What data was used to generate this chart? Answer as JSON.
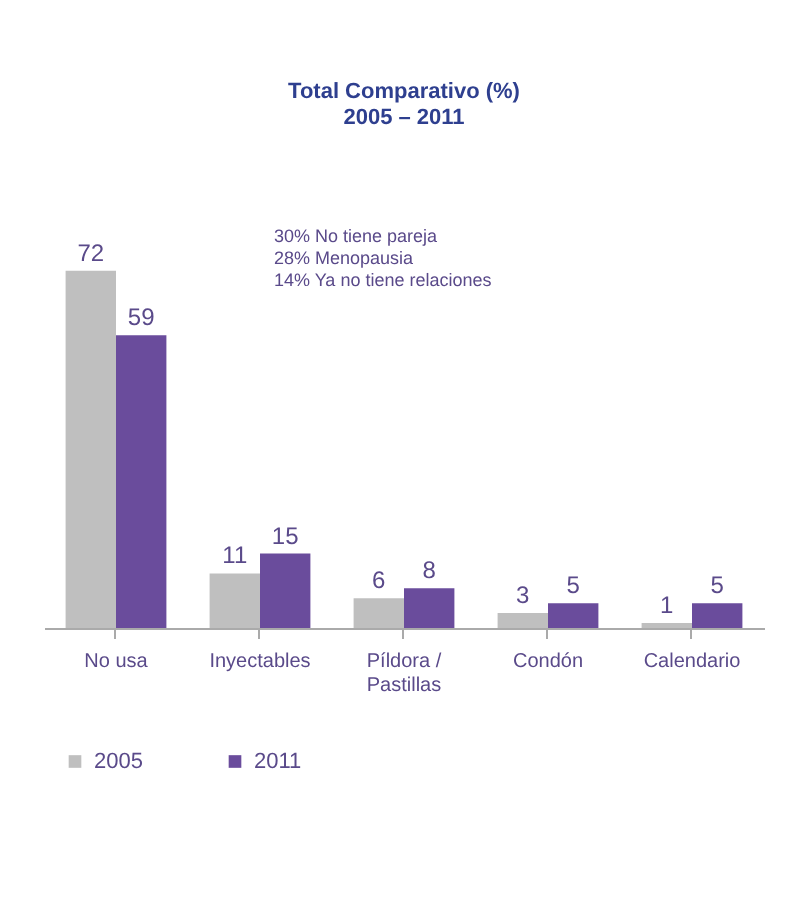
{
  "chart_data": {
    "type": "bar",
    "title": "Total Comparativo (%)",
    "subtitle": "2005 – 2011",
    "categories": [
      "No usa",
      "Inyectables",
      "Píldora / Pastillas",
      "Condón",
      "Calendario"
    ],
    "series": [
      {
        "name": "2005",
        "color": "#bfbfbf",
        "values": [
          72,
          11,
          6,
          3,
          1
        ]
      },
      {
        "name": "2011",
        "color": "#6a4c9c",
        "values": [
          59,
          15,
          8,
          5,
          5
        ]
      }
    ],
    "data_labels": true,
    "legend": "bottom",
    "grid": false,
    "annotations": [
      "30% No tiene pareja",
      "28% Menopausia",
      "14% Ya no tiene relaciones"
    ]
  }
}
